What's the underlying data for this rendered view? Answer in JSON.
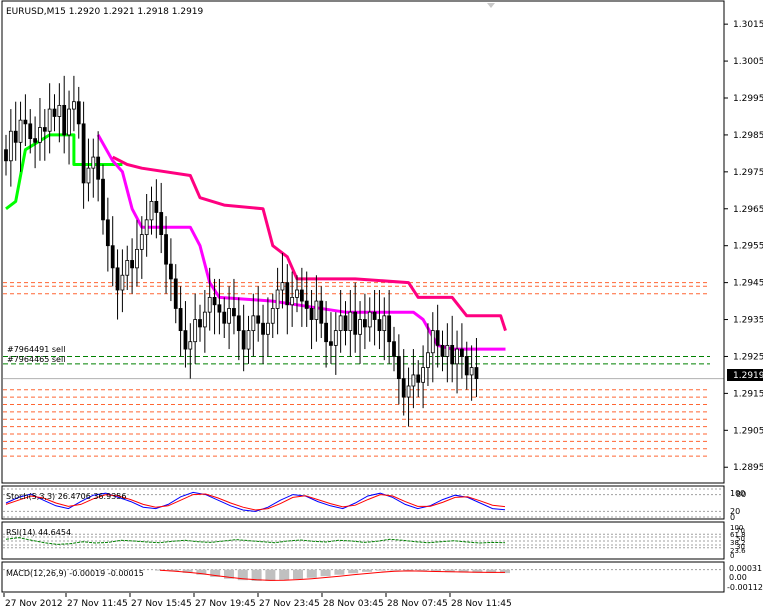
{
  "colors": {
    "background": "#ffffff",
    "frame": "#000000",
    "candle": "#000000",
    "trail_green": "#00ff00",
    "trail_magenta_inner": "#ff00ff",
    "trail_magenta_outer": "#ff0080",
    "order_orange": "#ff6633",
    "order_green": "#008000",
    "stoch_main": "#0000ff",
    "stoch_signal": "#ff0000",
    "rsi": "#008000",
    "macd_hist": "#c0c0c0",
    "macd_signal": "#ff0000"
  },
  "main": {
    "header": "EURUSD,M15  1.2920 1.2921 1.2918 1.2919",
    "current_price_label": "1.2919",
    "order_labels": [
      "#7964491 sell",
      "#7964465 sell"
    ]
  },
  "stoch_panel": {
    "header": "Stoch(5,3,3) 26.4706 36.9356",
    "scale_labels": [
      "100",
      "80",
      "20",
      "0"
    ]
  },
  "rsi_panel": {
    "header": "RSI(14) 44.6454",
    "scale_labels": [
      "100",
      "70",
      "61.8",
      "50",
      "38.2",
      "30",
      "23.6",
      "0"
    ]
  },
  "macd_panel": {
    "header": "MACD(12,26,9) -0.00019 -0.00015",
    "scale_labels": [
      "0.00031",
      "0.00",
      "-0.00112"
    ]
  },
  "chart_data": [
    {
      "type": "candlestick",
      "title": "EURUSD,M15",
      "symbol": "EURUSD",
      "timeframe": "M15",
      "last_bar": {
        "open": 1.292,
        "high": 1.2921,
        "low": 1.2918,
        "close": 1.2919
      },
      "current_price": 1.2919,
      "ylim": [
        1.2891,
        1.3021
      ],
      "y_ticks": [
        1.3015,
        1.3005,
        1.2995,
        1.2985,
        1.2975,
        1.2965,
        1.2955,
        1.2945,
        1.2935,
        1.2925,
        1.2915,
        1.2905,
        1.2895
      ],
      "x_labels": [
        "27 Nov 2012",
        "27 Nov 11:45",
        "27 Nov 15:45",
        "27 Nov 19:45",
        "27 Nov 23:45",
        "28 Nov 03:45",
        "28 Nov 07:45",
        "28 Nov 11:45"
      ],
      "grid": false,
      "close_series": [
        1.2978,
        1.2986,
        1.2983,
        1.2989,
        1.2988,
        1.2984,
        1.2983,
        1.2987,
        1.2986,
        1.2992,
        1.299,
        1.2993,
        1.2985,
        1.2992,
        1.2994,
        1.2988,
        1.2972,
        1.2976,
        1.2979,
        1.2973,
        1.2962,
        1.2955,
        1.2949,
        1.2943,
        1.2947,
        1.2951,
        1.2949,
        1.2954,
        1.2958,
        1.2962,
        1.2967,
        1.2964,
        1.2958,
        1.295,
        1.2946,
        1.2938,
        1.2932,
        1.2927,
        1.2929,
        1.2935,
        1.2933,
        1.2937,
        1.2941,
        1.2939,
        1.2937,
        1.2934,
        1.2938,
        1.2936,
        1.2932,
        1.2927,
        1.2932,
        1.2936,
        1.2934,
        1.2931,
        1.2934,
        1.2938,
        1.2943,
        1.2945,
        1.2939,
        1.2941,
        1.2943,
        1.294,
        1.2938,
        1.2935,
        1.294,
        1.2934,
        1.2929,
        1.2928,
        1.2932,
        1.2936,
        1.2932,
        1.2937,
        1.2931,
        1.2935,
        1.2933,
        1.2937,
        1.2935,
        1.2932,
        1.2936,
        1.2929,
        1.2925,
        1.2919,
        1.2914,
        1.2917,
        1.292,
        1.2918,
        1.2922,
        1.2926,
        1.2932,
        1.2928,
        1.2925,
        1.2928,
        1.2923,
        1.2927,
        1.2925,
        1.292,
        1.2922,
        1.2919
      ],
      "series": [
        {
          "name": "trail_green",
          "color": "#00ff00",
          "points": [
            [
              0,
              1.2965
            ],
            [
              2,
              1.2967
            ],
            [
              4,
              1.2981
            ],
            [
              9,
              1.2985
            ],
            [
              14,
              1.2985
            ],
            [
              14,
              1.2977
            ],
            [
              22,
              1.2977
            ],
            [
              24,
              1.2977
            ]
          ]
        },
        {
          "name": "trail_magenta_inner",
          "color": "#ff00ff",
          "points": [
            [
              19,
              1.2985
            ],
            [
              22,
              1.2978
            ],
            [
              24,
              1.2975
            ],
            [
              26,
              1.2965
            ],
            [
              28,
              1.296
            ],
            [
              38,
              1.296
            ],
            [
              40,
              1.2955
            ],
            [
              42,
              1.2945
            ],
            [
              44,
              1.2941
            ],
            [
              55,
              1.294
            ],
            [
              60,
              1.2939
            ],
            [
              70,
              1.2937
            ],
            [
              72,
              1.2937
            ],
            [
              84,
              1.2937
            ],
            [
              86,
              1.2935
            ],
            [
              89,
              1.2928
            ],
            [
              92,
              1.2927
            ],
            [
              103,
              1.2927
            ]
          ]
        },
        {
          "name": "trail_magenta_outer",
          "color": "#ff0080",
          "points": [
            [
              22,
              1.2979
            ],
            [
              25,
              1.2977
            ],
            [
              28,
              1.2976
            ],
            [
              38,
              1.2974
            ],
            [
              40,
              1.2968
            ],
            [
              45,
              1.2966
            ],
            [
              53,
              1.2965
            ],
            [
              55,
              1.2955
            ],
            [
              58,
              1.2952
            ],
            [
              60,
              1.2946
            ],
            [
              72,
              1.2946
            ],
            [
              83,
              1.2945
            ],
            [
              85,
              1.2941
            ],
            [
              92,
              1.2941
            ],
            [
              95,
              1.2936
            ],
            [
              102,
              1.2936
            ],
            [
              103,
              1.2932
            ]
          ]
        }
      ],
      "order_levels": [
        {
          "label": "#7964491 sell",
          "price": 1.2925,
          "color": "#008000"
        },
        {
          "label": "#7964465 sell",
          "price": 1.2923,
          "color": "#008000"
        }
      ],
      "orange_levels": [
        1.2945,
        1.2944,
        1.2942,
        1.2916,
        1.2914,
        1.2912,
        1.291,
        1.2908,
        1.2906,
        1.2904,
        1.2902,
        1.29,
        1.2898
      ]
    },
    {
      "type": "line",
      "title": "Stoch(5,3,3)",
      "ylim": [
        0,
        100
      ],
      "levels": [
        80,
        20
      ],
      "series": [
        {
          "name": "26.4706",
          "color": "#0000ff",
          "values": [
            50,
            70,
            82,
            60,
            40,
            30,
            55,
            78,
            85,
            70,
            55,
            35,
            30,
            45,
            72,
            88,
            80,
            60,
            40,
            25,
            20,
            35,
            60,
            80,
            75,
            55,
            40,
            30,
            50,
            75,
            85,
            70,
            45,
            30,
            40,
            62,
            78,
            70,
            50,
            30,
            26
          ]
        },
        {
          "name": "36.9356",
          "color": "#ff0000",
          "values": [
            45,
            60,
            75,
            68,
            50,
            38,
            45,
            65,
            80,
            75,
            62,
            45,
            35,
            40,
            60,
            80,
            82,
            68,
            50,
            35,
            25,
            30,
            48,
            70,
            76,
            62,
            48,
            36,
            42,
            62,
            80,
            75,
            55,
            38,
            38,
            52,
            70,
            72,
            58,
            42,
            37
          ]
        }
      ]
    },
    {
      "type": "line",
      "title": "RSI(14)",
      "ylim": [
        0,
        100
      ],
      "levels": [
        70,
        61.8,
        50,
        38.2,
        30
      ],
      "series": [
        {
          "name": "44.6454",
          "color": "#008000",
          "values": [
            55,
            60,
            52,
            45,
            40,
            42,
            48,
            44,
            46,
            52,
            50,
            47,
            45,
            49,
            52,
            48,
            46,
            50,
            54,
            51,
            48,
            45,
            50,
            53,
            49,
            47,
            52,
            50,
            46,
            49,
            55,
            52,
            48,
            45,
            48,
            51,
            47,
            44,
            46,
            45
          ]
        }
      ]
    },
    {
      "type": "bar",
      "title": "MACD(12,26,9)",
      "ylim": [
        -0.00112,
        0.00031
      ],
      "series": [
        {
          "name": "-0.00019",
          "color": "#c0c0c0",
          "values": [
            -5e-05,
            -0.0001,
            -0.00018,
            -0.00028,
            -0.0004,
            -0.0005,
            -0.00058,
            -0.00062,
            -0.00062,
            -0.00058,
            -0.00052,
            -0.00045,
            -0.00036,
            -0.00028,
            -0.0002,
            -0.00012,
            -5e-05,
            -2e-05,
            -4e-05,
            -8e-05,
            -0.00012,
            -0.00014,
            -0.00016,
            -0.00017,
            -0.00018,
            -0.00019
          ]
        },
        {
          "name": "-0.00015",
          "color": "#ff0000",
          "values": [
            -3e-05,
            -8e-05,
            -0.00014,
            -0.00022,
            -0.00032,
            -0.00042,
            -0.0005,
            -0.00056,
            -0.00059,
            -0.00058,
            -0.00055,
            -0.0005,
            -0.00043,
            -0.00036,
            -0.00028,
            -0.00021,
            -0.00014,
            -9e-05,
            -7e-05,
            -8e-05,
            -0.0001,
            -0.00012,
            -0.00013,
            -0.00014,
            -0.00015,
            -0.00015
          ]
        }
      ]
    }
  ]
}
